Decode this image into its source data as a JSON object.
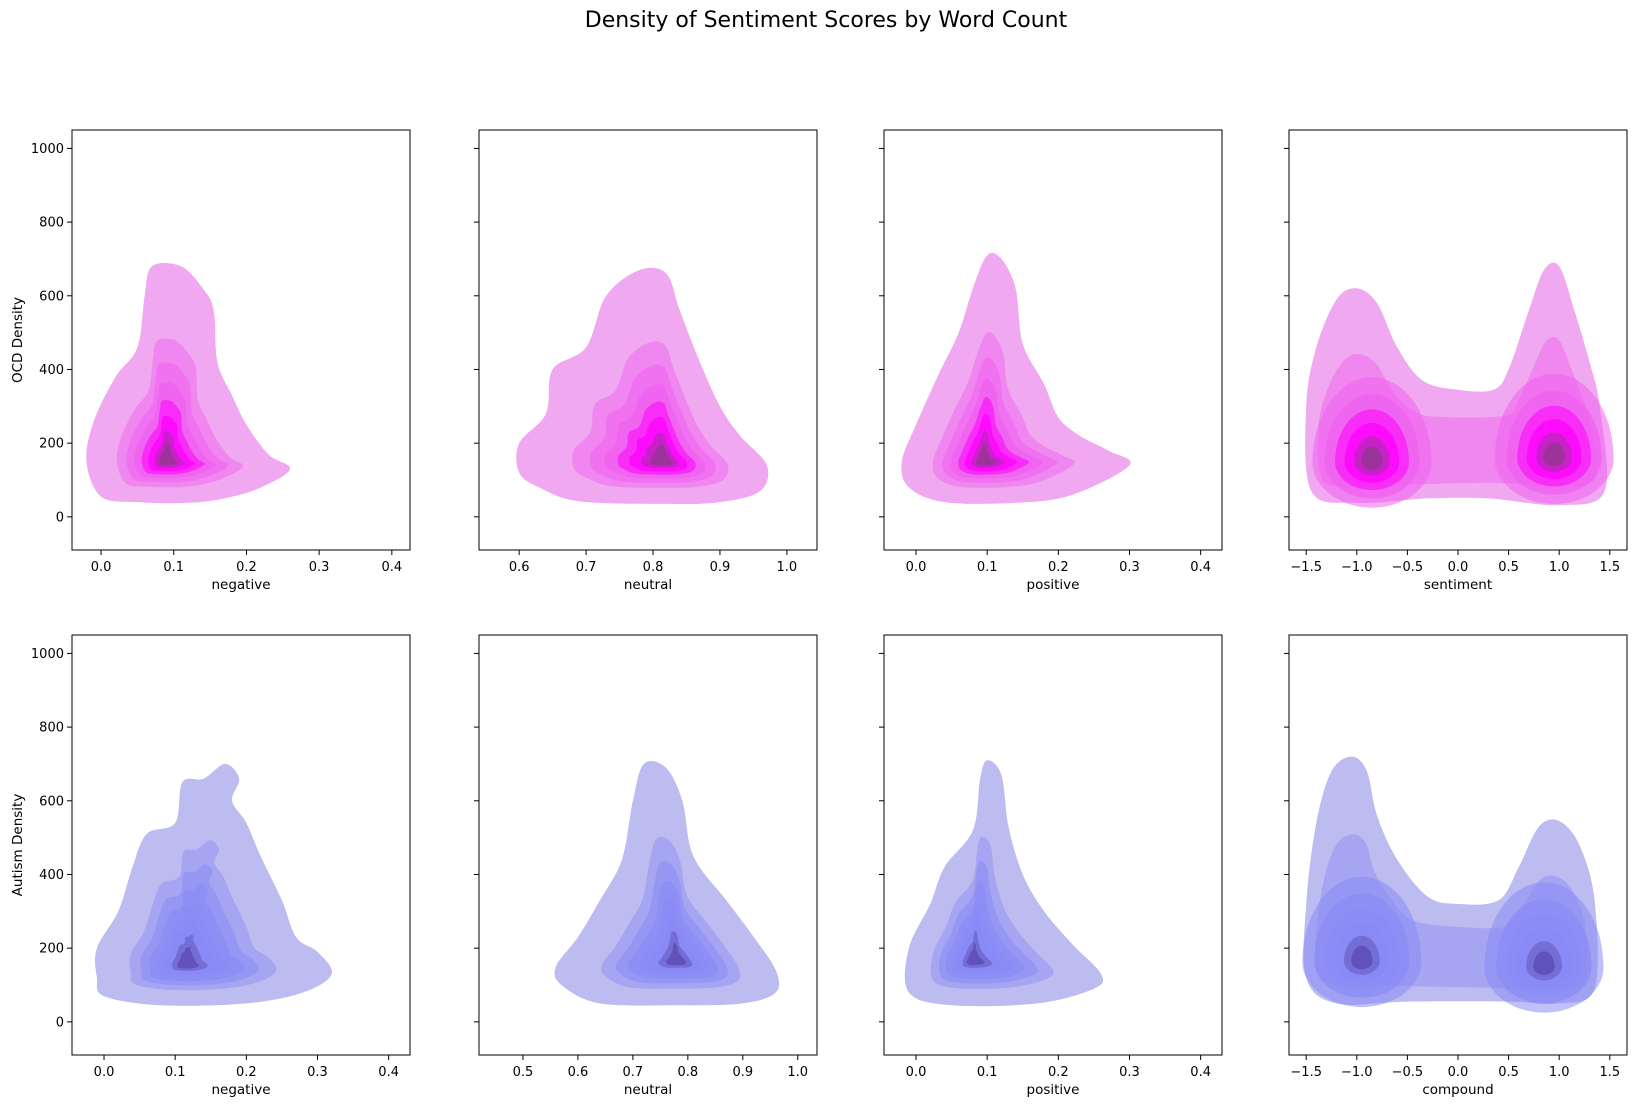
{
  "figure": {
    "title": "Density of Sentiment Scores by Word Count"
  },
  "colors": {
    "ocd_light": "#f0a8f0",
    "ocd_mid": "#f060f0",
    "ocd_core": "#ff00ff",
    "ocd_dark": "#8b3a8b",
    "autism_light": "#bcbcf0",
    "autism_mid": "#8a8af5",
    "autism_dark": "#5a4ab0"
  },
  "chart_data": [
    {
      "type": "kde2d",
      "group": "OCD",
      "xlabel": "negative",
      "ylabel": "OCD Density",
      "xticks": [
        0.0,
        0.1,
        0.2,
        0.3,
        0.4
      ],
      "xtick_labels": [
        "0.0",
        "0.1",
        "0.2",
        "0.3",
        "0.4"
      ],
      "xlim": [
        -0.04,
        0.425
      ],
      "yticks": [
        0,
        200,
        400,
        600,
        800,
        1000
      ],
      "ytick_labels": [
        "0",
        "200",
        "400",
        "600",
        "800",
        "1000"
      ],
      "ylim": [
        -90,
        1050
      ],
      "density_peaks": [
        {
          "x": 0.09,
          "y": 150
        }
      ],
      "outer_contour": [
        [
          0.0,
          55
        ],
        [
          0.05,
          40
        ],
        [
          0.12,
          38
        ],
        [
          0.17,
          50
        ],
        [
          0.22,
          80
        ],
        [
          0.26,
          130
        ],
        [
          0.23,
          170
        ],
        [
          0.2,
          250
        ],
        [
          0.18,
          330
        ],
        [
          0.16,
          420
        ],
        [
          0.155,
          560
        ],
        [
          0.14,
          620
        ],
        [
          0.11,
          680
        ],
        [
          0.07,
          680
        ],
        [
          0.06,
          600
        ],
        [
          0.05,
          460
        ],
        [
          0.02,
          380
        ],
        [
          -0.01,
          260
        ],
        [
          -0.02,
          150
        ]
      ]
    },
    {
      "type": "kde2d",
      "group": "OCD",
      "xlabel": "neutral",
      "ylabel": "",
      "xticks": [
        0.6,
        0.7,
        0.8,
        0.9,
        1.0
      ],
      "xtick_labels": [
        "0.6",
        "0.7",
        "0.8",
        "0.9",
        "1.0"
      ],
      "xlim": [
        0.54,
        1.045
      ],
      "yticks": [
        0,
        200,
        400,
        600,
        800,
        1000
      ],
      "ytick_labels": [],
      "ylim": [
        -90,
        1050
      ],
      "density_peaks": [
        {
          "x": 0.815,
          "y": 150
        }
      ],
      "outer_contour": [
        [
          0.63,
          80
        ],
        [
          0.69,
          42
        ],
        [
          0.82,
          35
        ],
        [
          0.9,
          40
        ],
        [
          0.96,
          70
        ],
        [
          0.97,
          140
        ],
        [
          0.93,
          220
        ],
        [
          0.9,
          300
        ],
        [
          0.87,
          420
        ],
        [
          0.84,
          560
        ],
        [
          0.82,
          660
        ],
        [
          0.78,
          670
        ],
        [
          0.73,
          600
        ],
        [
          0.7,
          460
        ],
        [
          0.65,
          400
        ],
        [
          0.64,
          280
        ],
        [
          0.6,
          200
        ],
        [
          0.6,
          120
        ]
      ]
    },
    {
      "type": "kde2d",
      "group": "OCD",
      "xlabel": "positive",
      "ylabel": "",
      "xticks": [
        0.0,
        0.1,
        0.2,
        0.3,
        0.4
      ],
      "xtick_labels": [
        "0.0",
        "0.1",
        "0.2",
        "0.3",
        "0.4"
      ],
      "xlim": [
        -0.045,
        0.43
      ],
      "yticks": [
        0,
        200,
        400,
        600,
        800,
        1000
      ],
      "ytick_labels": [],
      "ylim": [
        -90,
        1050
      ],
      "density_peaks": [
        {
          "x": 0.095,
          "y": 150
        }
      ],
      "outer_contour": [
        [
          -0.01,
          80
        ],
        [
          0.04,
          40
        ],
        [
          0.14,
          38
        ],
        [
          0.22,
          60
        ],
        [
          0.3,
          140
        ],
        [
          0.27,
          180
        ],
        [
          0.23,
          220
        ],
        [
          0.2,
          270
        ],
        [
          0.18,
          360
        ],
        [
          0.15,
          470
        ],
        [
          0.14,
          620
        ],
        [
          0.12,
          700
        ],
        [
          0.1,
          710
        ],
        [
          0.08,
          620
        ],
        [
          0.06,
          500
        ],
        [
          0.03,
          380
        ],
        [
          0.0,
          250
        ],
        [
          -0.02,
          150
        ]
      ]
    },
    {
      "type": "kde2d",
      "group": "OCD",
      "xlabel": "sentiment",
      "ylabel": "",
      "xticks": [
        -1.5,
        -1.0,
        -0.5,
        0.0,
        0.5,
        1.0,
        1.5
      ],
      "xtick_labels": [
        "−1.5",
        "−1.0",
        "−0.5",
        "0.0",
        "0.5",
        "1.0",
        "1.5"
      ],
      "xlim": [
        -1.67,
        1.67
      ],
      "yticks": [
        0,
        200,
        400,
        600,
        800,
        1000
      ],
      "ytick_labels": [],
      "ylim": [
        -90,
        1050
      ],
      "density_peaks": [
        {
          "x": -0.85,
          "y": 150
        },
        {
          "x": 0.95,
          "y": 160
        }
      ],
      "outer_contour": [
        [
          -1.45,
          70
        ],
        [
          -1.0,
          38
        ],
        [
          -0.3,
          50
        ],
        [
          0.3,
          50
        ],
        [
          1.0,
          32
        ],
        [
          1.45,
          70
        ],
        [
          1.4,
          300
        ],
        [
          1.3,
          420
        ],
        [
          1.15,
          560
        ],
        [
          1.0,
          680
        ],
        [
          0.85,
          670
        ],
        [
          0.7,
          560
        ],
        [
          0.5,
          400
        ],
        [
          0.35,
          345
        ],
        [
          0.0,
          345
        ],
        [
          -0.35,
          370
        ],
        [
          -0.6,
          460
        ],
        [
          -0.8,
          580
        ],
        [
          -1.0,
          620
        ],
        [
          -1.2,
          590
        ],
        [
          -1.4,
          460
        ],
        [
          -1.5,
          300
        ]
      ]
    },
    {
      "type": "kde2d",
      "group": "Autism",
      "xlabel": "negative",
      "ylabel": "Autism Density",
      "xticks": [
        0.0,
        0.1,
        0.2,
        0.3,
        0.4
      ],
      "xtick_labels": [
        "0.0",
        "0.1",
        "0.2",
        "0.3",
        "0.4"
      ],
      "xlim": [
        -0.045,
        0.43
      ],
      "yticks": [
        0,
        200,
        400,
        600,
        800,
        1000
      ],
      "ytick_labels": [
        "0",
        "200",
        "400",
        "600",
        "800",
        "1000"
      ],
      "ylim": [
        -90,
        1050
      ],
      "density_peaks": [
        {
          "x": 0.115,
          "y": 155
        }
      ],
      "outer_contour": [
        [
          0.0,
          70
        ],
        [
          0.08,
          45
        ],
        [
          0.2,
          50
        ],
        [
          0.28,
          80
        ],
        [
          0.32,
          130
        ],
        [
          0.3,
          190
        ],
        [
          0.27,
          230
        ],
        [
          0.25,
          330
        ],
        [
          0.22,
          450
        ],
        [
          0.2,
          540
        ],
        [
          0.18,
          600
        ],
        [
          0.19,
          660
        ],
        [
          0.17,
          700
        ],
        [
          0.14,
          660
        ],
        [
          0.11,
          650
        ],
        [
          0.1,
          540
        ],
        [
          0.06,
          510
        ],
        [
          0.04,
          420
        ],
        [
          0.02,
          300
        ],
        [
          -0.01,
          200
        ],
        [
          -0.01,
          120
        ]
      ]
    },
    {
      "type": "kde2d",
      "group": "Autism",
      "xlabel": "neutral",
      "ylabel": "",
      "xticks": [
        0.5,
        0.6,
        0.7,
        0.8,
        0.9,
        1.0
      ],
      "xtick_labels": [
        "0.5",
        "0.6",
        "0.7",
        "0.8",
        "0.9",
        "1.0"
      ],
      "xlim": [
        0.42,
        1.035
      ],
      "yticks": [
        0,
        200,
        400,
        600,
        800,
        1000
      ],
      "ytick_labels": [],
      "ylim": [
        -90,
        1050
      ],
      "density_peaks": [
        {
          "x": 0.78,
          "y": 165
        }
      ],
      "outer_contour": [
        [
          0.57,
          100
        ],
        [
          0.64,
          50
        ],
        [
          0.78,
          45
        ],
        [
          0.9,
          50
        ],
        [
          0.96,
          80
        ],
        [
          0.96,
          140
        ],
        [
          0.92,
          230
        ],
        [
          0.87,
          330
        ],
        [
          0.81,
          450
        ],
        [
          0.79,
          600
        ],
        [
          0.76,
          690
        ],
        [
          0.72,
          700
        ],
        [
          0.7,
          600
        ],
        [
          0.68,
          440
        ],
        [
          0.64,
          330
        ],
        [
          0.6,
          230
        ],
        [
          0.56,
          150
        ]
      ]
    },
    {
      "type": "kde2d",
      "group": "Autism",
      "xlabel": "positive",
      "ylabel": "",
      "xticks": [
        0.0,
        0.1,
        0.2,
        0.3,
        0.4
      ],
      "xtick_labels": [
        "0.0",
        "0.1",
        "0.2",
        "0.3",
        "0.4"
      ],
      "xlim": [
        -0.045,
        0.43
      ],
      "yticks": [
        0,
        200,
        400,
        600,
        800,
        1000
      ],
      "ytick_labels": [],
      "ylim": [
        -90,
        1050
      ],
      "density_peaks": [
        {
          "x": 0.08,
          "y": 165
        }
      ],
      "outer_contour": [
        [
          -0.01,
          80
        ],
        [
          0.05,
          45
        ],
        [
          0.17,
          50
        ],
        [
          0.25,
          90
        ],
        [
          0.26,
          130
        ],
        [
          0.22,
          210
        ],
        [
          0.18,
          300
        ],
        [
          0.15,
          400
        ],
        [
          0.13,
          530
        ],
        [
          0.12,
          670
        ],
        [
          0.1,
          710
        ],
        [
          0.09,
          660
        ],
        [
          0.08,
          520
        ],
        [
          0.04,
          420
        ],
        [
          0.02,
          320
        ],
        [
          -0.01,
          200
        ]
      ]
    },
    {
      "type": "kde2d",
      "group": "Autism",
      "xlabel": "compound",
      "ylabel": "",
      "xticks": [
        -1.5,
        -1.0,
        -0.5,
        0.0,
        0.5,
        1.0,
        1.5
      ],
      "xtick_labels": [
        "−1.5",
        "−1.0",
        "−0.5",
        "0.0",
        "0.5",
        "1.0",
        "1.5"
      ],
      "xlim": [
        -1.67,
        1.67
      ],
      "yticks": [
        0,
        200,
        400,
        600,
        800,
        1000
      ],
      "ytick_labels": [],
      "ylim": [
        -90,
        1050
      ],
      "density_peaks": [
        {
          "x": -0.95,
          "y": 165
        },
        {
          "x": 0.85,
          "y": 150
        }
      ],
      "outer_contour": [
        [
          -1.5,
          120
        ],
        [
          -1.2,
          50
        ],
        [
          -0.5,
          55
        ],
        [
          0.5,
          55
        ],
        [
          1.0,
          50
        ],
        [
          1.35,
          90
        ],
        [
          1.35,
          330
        ],
        [
          1.2,
          480
        ],
        [
          1.0,
          545
        ],
        [
          0.8,
          530
        ],
        [
          0.6,
          420
        ],
        [
          0.4,
          330
        ],
        [
          0.0,
          320
        ],
        [
          -0.3,
          340
        ],
        [
          -0.6,
          440
        ],
        [
          -0.8,
          560
        ],
        [
          -0.9,
          680
        ],
        [
          -1.05,
          720
        ],
        [
          -1.25,
          680
        ],
        [
          -1.4,
          540
        ],
        [
          -1.5,
          320
        ]
      ]
    }
  ]
}
